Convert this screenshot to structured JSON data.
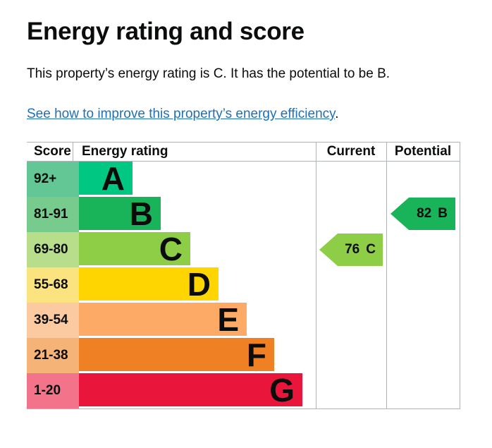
{
  "page": {
    "title": "Energy rating and score",
    "summary": "This property’s energy rating is C. It has the potential to be B.",
    "improve_link": {
      "text": "See how to improve this property’s energy efficiency",
      "suffix": ".",
      "color": "#1d70b8"
    }
  },
  "chart_data": {
    "type": "bar",
    "subtype": "epc-energy-rating-bands",
    "title": "Energy rating and score",
    "columns": [
      "Score",
      "Energy rating",
      "Current",
      "Potential"
    ],
    "bands": [
      {
        "letter": "A",
        "score_range": "92+",
        "color": "#00c781",
        "tint": "#62c795"
      },
      {
        "letter": "B",
        "score_range": "81-91",
        "color": "#19b459",
        "tint": "#77cb8c"
      },
      {
        "letter": "C",
        "score_range": "69-80",
        "color": "#8dce46",
        "tint": "#b8dd8b"
      },
      {
        "letter": "D",
        "score_range": "55-68",
        "color": "#ffd500",
        "tint": "#fbe380"
      },
      {
        "letter": "E",
        "score_range": "39-54",
        "color": "#fcaa65",
        "tint": "#fccaa1"
      },
      {
        "letter": "F",
        "score_range": "21-38",
        "color": "#ef8023",
        "tint": "#f5b377"
      },
      {
        "letter": "G",
        "score_range": "1-20",
        "color": "#e9153b",
        "tint": "#f2738a"
      }
    ],
    "current": {
      "label": "Current",
      "score": "76",
      "band": "C",
      "color": "#8dce46"
    },
    "potential": {
      "label": "Potential",
      "score": "82",
      "band": "B",
      "color": "#19b459"
    },
    "grid_color": "#b1b4b6",
    "text_color": "#0b0c0c"
  }
}
